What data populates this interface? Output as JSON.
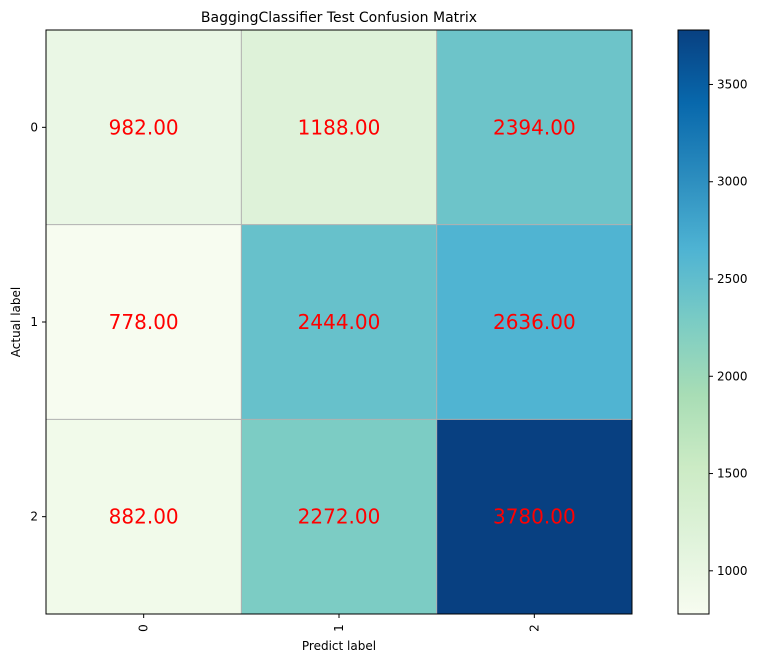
{
  "chart_data": {
    "type": "heatmap",
    "title": "BaggingClassifier Test Confusion Matrix",
    "xlabel": "Predict label",
    "ylabel": "Actual label",
    "x_tick_labels": [
      "0",
      "1",
      "2"
    ],
    "y_tick_labels": [
      "0",
      "1",
      "2"
    ],
    "values": [
      [
        982.0,
        1188.0,
        2394.0
      ],
      [
        778.0,
        2444.0,
        2636.0
      ],
      [
        882.0,
        2272.0,
        3780.0
      ]
    ],
    "cell_labels": [
      [
        "982.00",
        "1188.00",
        "2394.00"
      ],
      [
        "778.00",
        "2444.00",
        "2636.00"
      ],
      [
        "882.00",
        "2272.00",
        "3780.00"
      ]
    ],
    "value_range": [
      778,
      3780
    ],
    "colormap": "GnBu",
    "cell_text_color": "#ff0000",
    "grid": true,
    "colorbar": {
      "ticks": [
        1000,
        1500,
        2000,
        2500,
        3000,
        3500
      ],
      "tick_labels": [
        "1000",
        "1500",
        "2000",
        "2500",
        "3000",
        "3500"
      ]
    }
  }
}
